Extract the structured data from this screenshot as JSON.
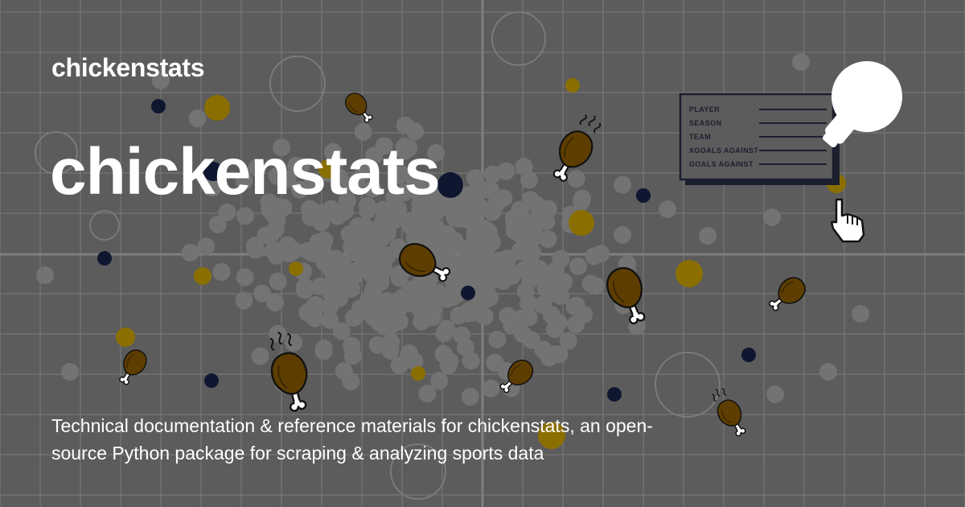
{
  "site": {
    "name": "chickenstats"
  },
  "page": {
    "title": "chickenstats",
    "description": "Technical documentation & reference materials for chickenstats, an open-source Python package for scraping & analyzing sports data"
  },
  "stats_card": {
    "labels": [
      "PLAYER",
      "SEASON",
      "TEAM",
      "XGOALS AGAINST",
      "GOALS AGAINST"
    ]
  },
  "colors": {
    "background": "#5c5c5c",
    "grid": "#7c7c7c",
    "dot_gray": "#737373",
    "dot_navy": "#0f1730",
    "dot_gold": "#8a6f00",
    "drumstick_meat": "#5e3e00",
    "drumstick_outline": "#111111",
    "bone": "#ffffff",
    "text": "#ffffff"
  },
  "icons": [
    "chicken-drumstick-icon",
    "pointing-hand-cursor-icon",
    "lightbulb-icon"
  ]
}
